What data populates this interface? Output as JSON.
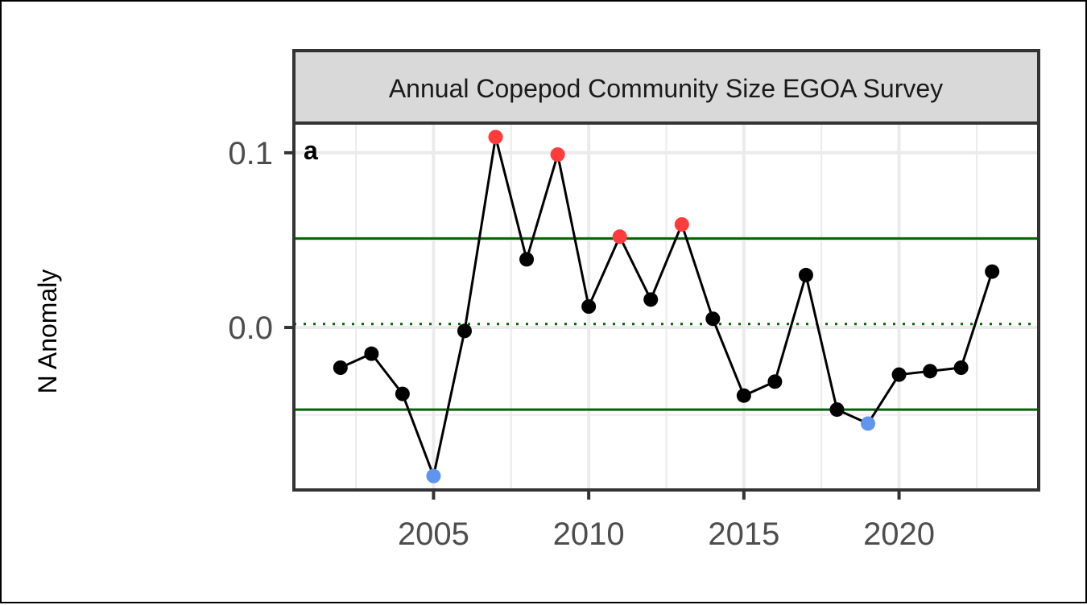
{
  "chart_data": {
    "type": "line",
    "title": "Annual Copepod Community Size EGOA Survey",
    "panel_label": "a",
    "xlabel": "",
    "ylabel": "N Anomaly",
    "xlim": [
      2000.5,
      2024.5
    ],
    "ylim": [
      -0.093,
      0.117
    ],
    "xticks": [
      2005,
      2010,
      2015,
      2020
    ],
    "xtick_labels": [
      "2005",
      "2010",
      "2015",
      "2020"
    ],
    "yticks": [
      0.0,
      0.1
    ],
    "ytick_labels": [
      "0.0",
      "0.1"
    ],
    "grid": true,
    "reference_lines": {
      "mean": 0.002,
      "upper_sd": 0.051,
      "lower_sd": -0.047
    },
    "series": [
      {
        "x": [
          2002,
          2003,
          2004,
          2005,
          2006,
          2007,
          2008,
          2009,
          2010,
          2011,
          2012,
          2013,
          2014,
          2015,
          2016,
          2017,
          2018,
          2019,
          2020,
          2021,
          2022,
          2023
        ],
        "values": [
          -0.023,
          -0.015,
          -0.038,
          -0.085,
          -0.002,
          0.109,
          0.039,
          0.099,
          0.012,
          0.052,
          0.016,
          0.059,
          0.005,
          -0.039,
          -0.031,
          0.03,
          -0.047,
          -0.055,
          -0.027,
          -0.025,
          -0.023,
          0.032
        ]
      }
    ],
    "colors": {
      "line": "#000000",
      "point_normal": "#000000",
      "point_high": "#ff3b3b",
      "point_low": "#5f95ec",
      "reference": "#006400",
      "grid": "#ebebeb",
      "strip_fill": "#d9d9d9",
      "panel_border": "#333333"
    }
  }
}
